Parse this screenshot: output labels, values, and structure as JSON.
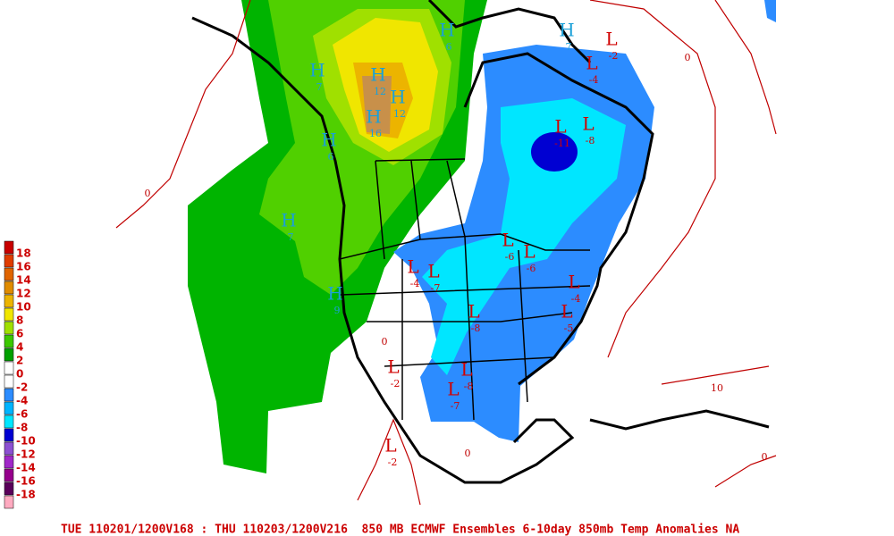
{
  "caption": "TUE 110201/1200V168 : THU 110203/1200V216  850 MB ECMWF Ensembles 6-10day 850mb Temp Anomalies NA",
  "legend": [
    {
      "value": 18,
      "color": "#c80000"
    },
    {
      "value": 16,
      "color": "#e03c00"
    },
    {
      "value": 14,
      "color": "#e06400"
    },
    {
      "value": 12,
      "color": "#e08c00"
    },
    {
      "value": 10,
      "color": "#ecb400"
    },
    {
      "value": 8,
      "color": "#f0e600"
    },
    {
      "value": 6,
      "color": "#a0e000"
    },
    {
      "value": 4,
      "color": "#3cc800"
    },
    {
      "value": 2,
      "color": "#00a000"
    },
    {
      "value": 0,
      "color": "#ffffff"
    },
    {
      "value": -2,
      "color": "#ffffff"
    },
    {
      "value": -4,
      "color": "#2c8cff"
    },
    {
      "value": -6,
      "color": "#00b4ff"
    },
    {
      "value": -8,
      "color": "#00e6ff"
    },
    {
      "value": -10,
      "color": "#0000d2"
    },
    {
      "value": -12,
      "color": "#8c50d2"
    },
    {
      "value": -14,
      "color": "#a028c8"
    },
    {
      "value": -16,
      "color": "#96008c"
    },
    {
      "value": -18,
      "color": "#5a005a"
    }
  ],
  "centers": [
    {
      "type": "H",
      "value": 7
    },
    {
      "type": "H",
      "value": 12
    },
    {
      "type": "H",
      "value": 12
    },
    {
      "type": "H",
      "value": 16
    },
    {
      "type": "H",
      "value": 6
    },
    {
      "type": "H",
      "value": 7
    },
    {
      "type": "H",
      "value": 9
    },
    {
      "type": "H",
      "value": 6
    },
    {
      "type": "H",
      "value": 7
    },
    {
      "type": "L",
      "value": -2
    },
    {
      "type": "L",
      "value": -4
    },
    {
      "type": "L",
      "value": -11
    },
    {
      "type": "L",
      "value": -8
    },
    {
      "type": "L",
      "value": -6
    },
    {
      "type": "L",
      "value": -6
    },
    {
      "type": "L",
      "value": -7
    },
    {
      "type": "L",
      "value": -4
    },
    {
      "type": "L",
      "value": -8
    },
    {
      "type": "L",
      "value": -4
    },
    {
      "type": "L",
      "value": -5
    },
    {
      "type": "L",
      "value": -8
    },
    {
      "type": "L",
      "value": -7
    },
    {
      "type": "L",
      "value": -2
    },
    {
      "type": "L",
      "value": -2
    }
  ],
  "contour_labels": [
    0,
    0,
    0,
    0,
    0,
    10
  ]
}
